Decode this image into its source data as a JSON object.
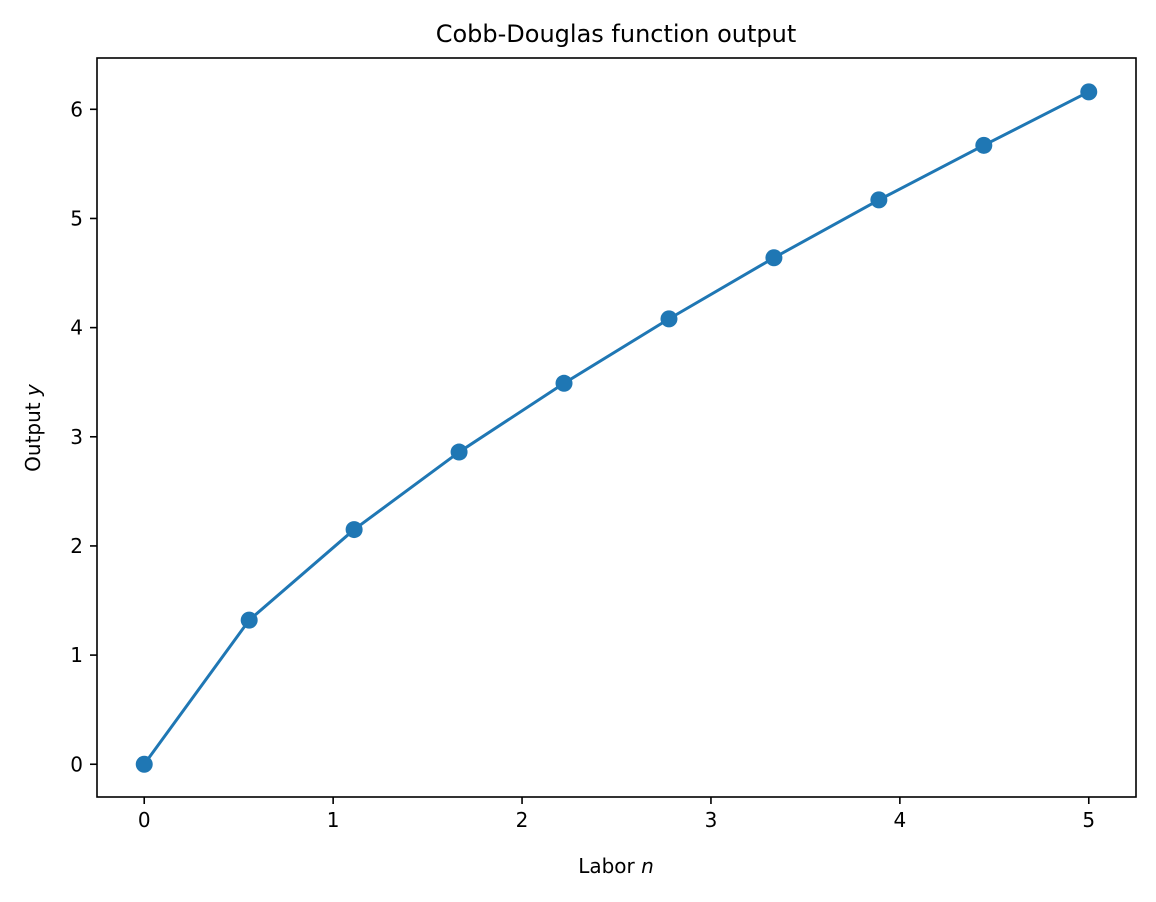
{
  "chart_data": {
    "type": "line",
    "title": "Cobb-Douglas function output",
    "xlabel": {
      "text": "Labor ",
      "var": "n"
    },
    "ylabel": {
      "text": "Output ",
      "var": "y"
    },
    "x": [
      0,
      0.5556,
      1.1111,
      1.6667,
      2.2222,
      2.7778,
      3.3333,
      3.8889,
      4.4444,
      5.0
    ],
    "series": [
      {
        "values": [
          0.0,
          1.32,
          2.15,
          2.86,
          3.49,
          4.08,
          4.64,
          5.17,
          5.67,
          6.16
        ],
        "color": "#1f77b4",
        "marker": "circle"
      }
    ],
    "xlim": [
      -0.25,
      5.25
    ],
    "ylim": [
      -0.3,
      6.47
    ],
    "xticks": [
      0,
      1,
      2,
      3,
      4,
      5
    ],
    "yticks": [
      0,
      1,
      2,
      3,
      4,
      5,
      6
    ],
    "grid": false,
    "legend": false
  }
}
